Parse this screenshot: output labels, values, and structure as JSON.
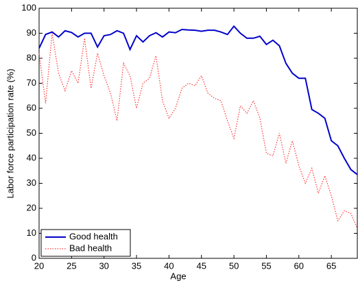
{
  "chart_data": {
    "type": "line",
    "xlabel": "Age",
    "ylabel": "Labor force participation rate (%)",
    "x": [
      20,
      21,
      22,
      23,
      24,
      25,
      26,
      27,
      28,
      29,
      30,
      31,
      32,
      33,
      34,
      35,
      36,
      37,
      38,
      39,
      40,
      41,
      42,
      43,
      44,
      45,
      46,
      47,
      48,
      49,
      50,
      51,
      52,
      53,
      54,
      55,
      56,
      57,
      58,
      59,
      60,
      61,
      62,
      63,
      64,
      65,
      66,
      67,
      68,
      69
    ],
    "series": [
      {
        "name": "Good health",
        "color": "#0000cc",
        "style": "solid",
        "values": [
          84,
          89.5,
          90.5,
          88.5,
          91,
          90.3,
          88.5,
          90,
          90,
          84.5,
          89,
          89.5,
          91,
          90,
          83.5,
          89,
          86.5,
          89,
          90.2,
          88.5,
          90.5,
          90.2,
          91.5,
          91.3,
          91.2,
          90.8,
          91.2,
          91.2,
          90.5,
          89.5,
          92.8,
          90,
          88,
          88,
          88.8,
          85.5,
          87.2,
          85,
          78,
          74,
          72,
          72,
          59.5,
          58,
          56,
          47,
          45,
          40,
          35.5,
          33.5
        ]
      },
      {
        "name": "Bad health",
        "color": "#ff3333",
        "style": "dotted",
        "values": [
          82,
          62,
          90,
          74,
          67,
          75,
          70,
          88,
          68,
          82,
          73,
          66,
          55,
          78,
          73,
          60,
          70,
          72,
          81,
          63,
          56,
          60,
          68,
          70,
          69,
          73,
          66,
          64,
          63,
          55,
          48,
          61,
          58,
          63,
          56,
          42,
          41,
          50,
          38,
          47,
          37,
          30,
          36,
          26,
          33,
          25,
          15,
          19,
          18,
          12
        ]
      }
    ],
    "xlim": [
      20,
      69
    ],
    "xticks": [
      20,
      25,
      30,
      35,
      40,
      45,
      50,
      55,
      60,
      65
    ],
    "ylim": [
      0,
      100
    ],
    "yticks": [
      0,
      10,
      20,
      30,
      40,
      50,
      60,
      70,
      80,
      90,
      100
    ],
    "legend": "lower left"
  }
}
